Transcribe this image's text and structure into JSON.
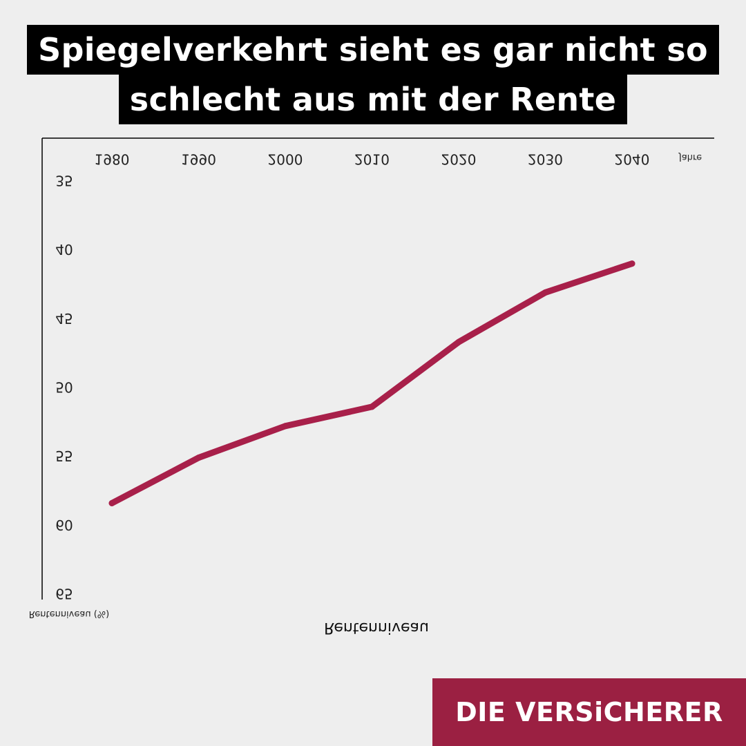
{
  "title": {
    "line1": "Spiegelverkehrt sieht es gar nicht so",
    "line2": "schlecht aus mit der Rente"
  },
  "brand": {
    "text": "DIE VERSiCHERER",
    "color": "#9b2042"
  },
  "chart_data": {
    "type": "line",
    "x_axis_label": "Jahre",
    "y_axis_label": "Rentenniveau (%)",
    "bottom_label": "Rentenniveau",
    "x_ticks": [
      1980,
      1990,
      2000,
      2010,
      2020,
      2030,
      2040
    ],
    "y_ticks": [
      35,
      40,
      45,
      50,
      55,
      60,
      65
    ],
    "ylim": [
      35,
      65
    ],
    "y_inverted": true,
    "mirrored_labels": true,
    "line_color": "#a8204a",
    "series": [
      {
        "x": [
          1980,
          1990,
          2000,
          2010,
          2020,
          2030,
          2040
        ],
        "values": [
          58.5,
          55.2,
          52.9,
          51.5,
          46.8,
          43.2,
          41.1
        ]
      }
    ]
  }
}
